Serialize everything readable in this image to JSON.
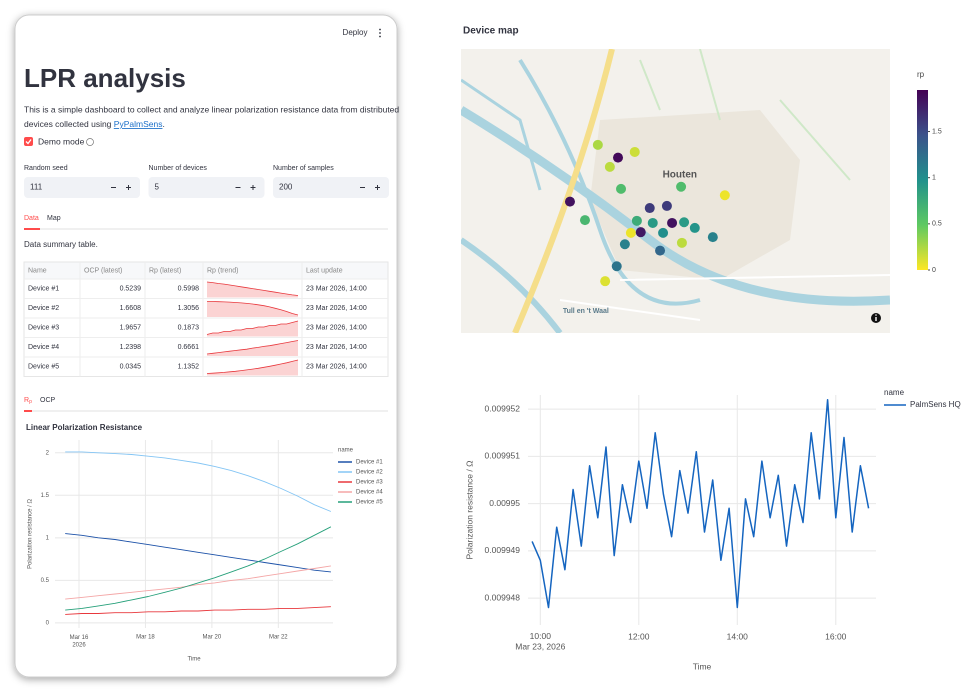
{
  "app": {
    "menu": "Deploy",
    "title": "LPR analysis",
    "description": {
      "line1": "This is a simple dashboard to collect and analyze linear polarization resistance data from distributed",
      "line2": "devices collected using ",
      "link": "PyPalmSens",
      "end": "."
    },
    "demo_mode": {
      "label": "Demo mode",
      "checked": true
    },
    "inputs": [
      {
        "label": "Random seed",
        "value": 111
      },
      {
        "label": "Number of devices",
        "value": 5
      },
      {
        "label": "Number of samples",
        "value": 200
      }
    ],
    "tabs": [
      "Data",
      "Map"
    ],
    "caption": "Data summary table.",
    "table": {
      "columns": [
        "Name",
        "OCP (latest)",
        "Rp (latest)",
        "Rp (trend)",
        "Last update"
      ],
      "rows": [
        [
          "Device #1",
          0.5239,
          0.5998,
          "23 Mar 2026, 14:00"
        ],
        [
          "Device #2",
          1.6608,
          1.3056,
          "23 Mar 2026, 14:00"
        ],
        [
          "Device #3",
          1.9657,
          0.1873,
          "23 Mar 2026, 14:00"
        ],
        [
          "Device #4",
          1.2398,
          0.6661,
          "23 Mar 2026, 14:00"
        ],
        [
          "Device #5",
          0.0345,
          1.1352,
          "23 Mar 2026, 14:00"
        ]
      ]
    },
    "chart_tabs": [
      [
        "R",
        "p"
      ],
      "OCP"
    ]
  },
  "chart_data": [
    {
      "type": "line",
      "title": "Linear Polarization Resistance",
      "x_label": "Time",
      "y_label": "Polarization resistance / Ω",
      "legend_title": "name",
      "legend_position": "right",
      "grid": true,
      "x": [
        "2026-03-15T14:00",
        "2026-03-16T02:00",
        "2026-03-16T14:00",
        "2026-03-17T02:00",
        "2026-03-17T14:00",
        "2026-03-18T02:00",
        "2026-03-18T14:00",
        "2026-03-19T02:00",
        "2026-03-19T14:00",
        "2026-03-20T02:00",
        "2026-03-20T14:00",
        "2026-03-21T02:00",
        "2026-03-21T14:00",
        "2026-03-22T02:00",
        "2026-03-22T14:00",
        "2026-03-23T02:00",
        "2026-03-23T14:00"
      ],
      "xlim": [
        "2026-03-15T06:40",
        "2026-03-23T15:30"
      ],
      "xticks": [
        {
          "value": "2026-03-16T00:00",
          "label": "Mar 16\n2026"
        },
        {
          "value": "2026-03-18T00:00",
          "label": "Mar 18"
        },
        {
          "value": "2026-03-20T00:00",
          "label": "Mar 20"
        },
        {
          "value": "2026-03-22T00:00",
          "label": "Mar 22"
        }
      ],
      "ylim": [
        -0.06,
        2.15
      ],
      "yticks": [
        0,
        0.5,
        1,
        1.5,
        2
      ],
      "series": [
        {
          "name": "Device #1",
          "color": "#1d52a8",
          "values": [
            1.05,
            1.03,
            1.0,
            0.98,
            0.95,
            0.92,
            0.89,
            0.86,
            0.83,
            0.8,
            0.77,
            0.74,
            0.71,
            0.68,
            0.65,
            0.62,
            0.6
          ]
        },
        {
          "name": "Device #2",
          "color": "#84c5f4",
          "values": [
            2.01,
            2.01,
            2.0,
            1.99,
            1.98,
            1.96,
            1.94,
            1.91,
            1.88,
            1.84,
            1.79,
            1.73,
            1.66,
            1.58,
            1.49,
            1.39,
            1.31
          ]
        },
        {
          "name": "Device #3",
          "color": "#e8383d",
          "values": [
            0.1,
            0.11,
            0.11,
            0.12,
            0.12,
            0.13,
            0.13,
            0.14,
            0.14,
            0.15,
            0.15,
            0.16,
            0.16,
            0.17,
            0.17,
            0.18,
            0.19
          ]
        },
        {
          "name": "Device #4",
          "color": "#f4a6a6",
          "values": [
            0.28,
            0.3,
            0.32,
            0.34,
            0.36,
            0.38,
            0.4,
            0.42,
            0.45,
            0.47,
            0.5,
            0.52,
            0.55,
            0.58,
            0.61,
            0.64,
            0.67
          ]
        },
        {
          "name": "Device #5",
          "color": "#26a07a",
          "values": [
            0.15,
            0.17,
            0.2,
            0.23,
            0.27,
            0.31,
            0.36,
            0.41,
            0.47,
            0.53,
            0.6,
            0.67,
            0.75,
            0.84,
            0.93,
            1.03,
            1.13
          ]
        }
      ]
    },
    {
      "type": "map",
      "title": "Device map",
      "lonlim": [
        5.12,
        5.22
      ],
      "latlim": [
        52.01,
        52.05
      ],
      "places": [
        {
          "name": "Houten",
          "lon": 5.171,
          "lat": 52.0323
        },
        {
          "name": "Tull en 't Waal",
          "lon": 5.1491,
          "lat": 52.0131
        }
      ],
      "points": {
        "lon": [
          5.1519,
          5.1566,
          5.1605,
          5.1547,
          5.1573,
          5.1713,
          5.1815,
          5.1454,
          5.1489,
          5.164,
          5.168,
          5.161,
          5.1647,
          5.1692,
          5.172,
          5.1745,
          5.1596,
          5.1619,
          5.1671,
          5.1582,
          5.1715,
          5.1787,
          5.1664,
          5.1563,
          5.1536
        ],
        "lat": [
          52.0365,
          52.0347,
          52.0355,
          52.0334,
          52.0303,
          52.0306,
          52.0294,
          52.0285,
          52.0259,
          52.0276,
          52.0279,
          52.0258,
          52.0255,
          52.0255,
          52.0256,
          52.0248,
          52.0241,
          52.0242,
          52.0241,
          52.0225,
          52.0227,
          52.0235,
          52.0216,
          52.0194,
          52.0173
        ],
        "rp": [
          0.25,
          1.9,
          0.15,
          0.2,
          0.6,
          0.6,
          0.05,
          1.85,
          0.65,
          1.6,
          1.6,
          0.75,
          0.9,
          1.85,
          0.9,
          0.95,
          0.05,
          1.8,
          1.0,
          1.1,
          0.2,
          1.1,
          1.3,
          1.2,
          0.1
        ]
      },
      "colorbar": {
        "title": "rp",
        "clim": [
          0,
          1.95
        ],
        "ticks": [
          0,
          0.5,
          1,
          1.5
        ]
      },
      "colorscale": [
        "#fde725",
        "#5ec962",
        "#21918c",
        "#3b528b",
        "#440154"
      ]
    },
    {
      "type": "line",
      "x_label": "Time",
      "y_label": "Polarization resistance / Ω",
      "legend_title": "name",
      "legend_position": "right",
      "grid": true,
      "x": [
        "2026-03-23T09:50",
        "2026-03-23T10:00",
        "2026-03-23T10:10",
        "2026-03-23T10:20",
        "2026-03-23T10:30",
        "2026-03-23T10:40",
        "2026-03-23T10:50",
        "2026-03-23T11:00",
        "2026-03-23T11:10",
        "2026-03-23T11:20",
        "2026-03-23T11:30",
        "2026-03-23T11:40",
        "2026-03-23T11:50",
        "2026-03-23T12:00",
        "2026-03-23T12:10",
        "2026-03-23T12:20",
        "2026-03-23T12:30",
        "2026-03-23T12:40",
        "2026-03-23T12:50",
        "2026-03-23T13:00",
        "2026-03-23T13:10",
        "2026-03-23T13:20",
        "2026-03-23T13:30",
        "2026-03-23T13:40",
        "2026-03-23T13:50",
        "2026-03-23T14:00",
        "2026-03-23T14:10",
        "2026-03-23T14:20",
        "2026-03-23T14:30",
        "2026-03-23T14:40",
        "2026-03-23T14:50",
        "2026-03-23T15:00",
        "2026-03-23T15:10",
        "2026-03-23T15:20",
        "2026-03-23T15:30",
        "2026-03-23T15:40",
        "2026-03-23T15:50",
        "2026-03-23T16:00",
        "2026-03-23T16:10",
        "2026-03-23T16:20",
        "2026-03-23T16:30",
        "2026-03-23T16:40"
      ],
      "xlim": [
        "2026-03-23T09:45",
        "2026-03-23T16:49"
      ],
      "xticks": [
        {
          "value": "2026-03-23T10:00",
          "label": "10:00\nMar 23, 2026"
        },
        {
          "value": "2026-03-23T12:00",
          "label": "12:00"
        },
        {
          "value": "2026-03-23T14:00",
          "label": "14:00"
        },
        {
          "value": "2026-03-23T16:00",
          "label": "16:00"
        }
      ],
      "ylim": [
        0.00994743,
        0.0099523
      ],
      "yticks": [
        0.009948,
        0.009949,
        0.00995,
        0.009951,
        0.009952
      ],
      "series": [
        {
          "name": "PalmSens HQ",
          "color": "#1565c0",
          "values": [
            0.0099492,
            0.0099488,
            0.0099478,
            0.0099495,
            0.0099486,
            0.0099503,
            0.0099491,
            0.0099508,
            0.0099497,
            0.0099512,
            0.0099489,
            0.0099504,
            0.0099496,
            0.0099509,
            0.0099499,
            0.0099515,
            0.0099502,
            0.0099493,
            0.0099507,
            0.0099498,
            0.0099511,
            0.0099494,
            0.0099505,
            0.0099488,
            0.0099499,
            0.0099478,
            0.0099501,
            0.0099493,
            0.0099509,
            0.0099497,
            0.0099506,
            0.0099491,
            0.0099504,
            0.0099496,
            0.0099515,
            0.0099501,
            0.0099522,
            0.0099497,
            0.0099514,
            0.0099494,
            0.0099508,
            0.0099499
          ]
        }
      ]
    }
  ]
}
